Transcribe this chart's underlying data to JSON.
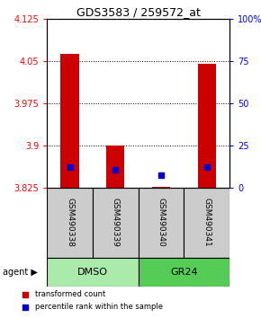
{
  "title": "GDS3583 / 259572_at",
  "samples": [
    "GSM490338",
    "GSM490339",
    "GSM490340",
    "GSM490341"
  ],
  "ylim_left": [
    3.825,
    4.125
  ],
  "ylim_right": [
    0,
    100
  ],
  "yticks_left": [
    3.825,
    3.9,
    3.975,
    4.05,
    4.125
  ],
  "yticks_right": [
    0,
    25,
    50,
    75,
    100
  ],
  "ytick_labels_left": [
    "3.825",
    "3.9",
    "3.975",
    "4.05",
    "4.125"
  ],
  "ytick_labels_right": [
    "0",
    "25",
    "50",
    "75",
    "100%"
  ],
  "bar_bottoms": [
    3.825,
    3.825,
    3.825,
    3.825
  ],
  "bar_tops": [
    4.063,
    3.9,
    3.827,
    4.045
  ],
  "blue_y": [
    3.862,
    3.857,
    3.847,
    3.862
  ],
  "bar_color": "#cc0000",
  "blue_color": "#0000cc",
  "group_labels": [
    "DMSO",
    "GR24"
  ],
  "group_color_dmso": "#aaeaaa",
  "group_color_gr24": "#55cc55",
  "sample_label_bg": "#cccccc",
  "agent_label": "agent ▶",
  "legend_red": "transformed count",
  "legend_blue": "percentile rank within the sample",
  "title_fontsize": 9,
  "bar_width": 0.4
}
